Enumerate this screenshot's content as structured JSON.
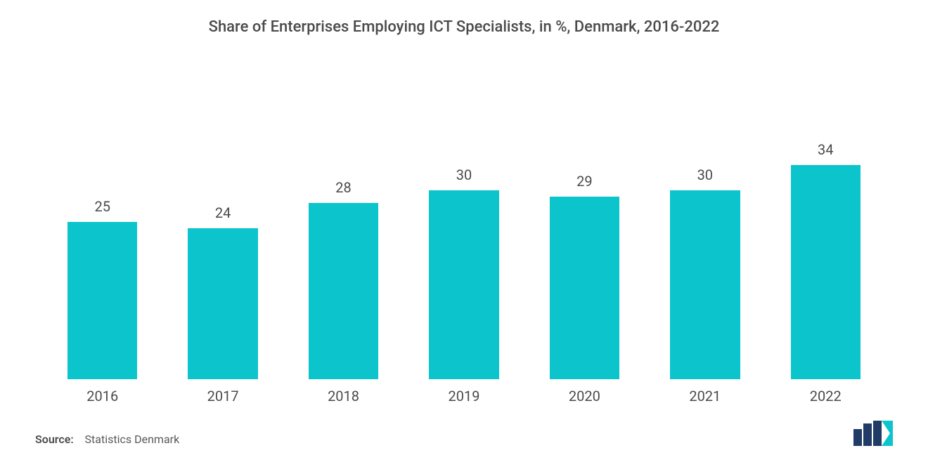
{
  "chart": {
    "type": "bar",
    "title": "Share of Enterprises Employing ICT Specialists, in %, Denmark, 2016-2022",
    "title_fontsize": 22,
    "title_color": "#4a4a4a",
    "categories": [
      "2016",
      "2017",
      "2018",
      "2019",
      "2020",
      "2021",
      "2022"
    ],
    "values": [
      25,
      24,
      28,
      30,
      29,
      30,
      34
    ],
    "bar_color": "#0cc4cc",
    "bar_width_pct": 58,
    "background_color": "#ffffff",
    "ylim": [
      0,
      40
    ],
    "value_label_fontsize": 20,
    "value_label_color": "#4a4a4a",
    "category_label_fontsize": 20,
    "category_label_color": "#4a4a4a"
  },
  "footer": {
    "source_label": "Source:",
    "source_value": "Statistics Denmark",
    "source_fontsize": 16,
    "source_color": "#5a5a5a"
  },
  "logo": {
    "bar_color": "#1f3b66",
    "accent_color": "#0cc4cc"
  }
}
